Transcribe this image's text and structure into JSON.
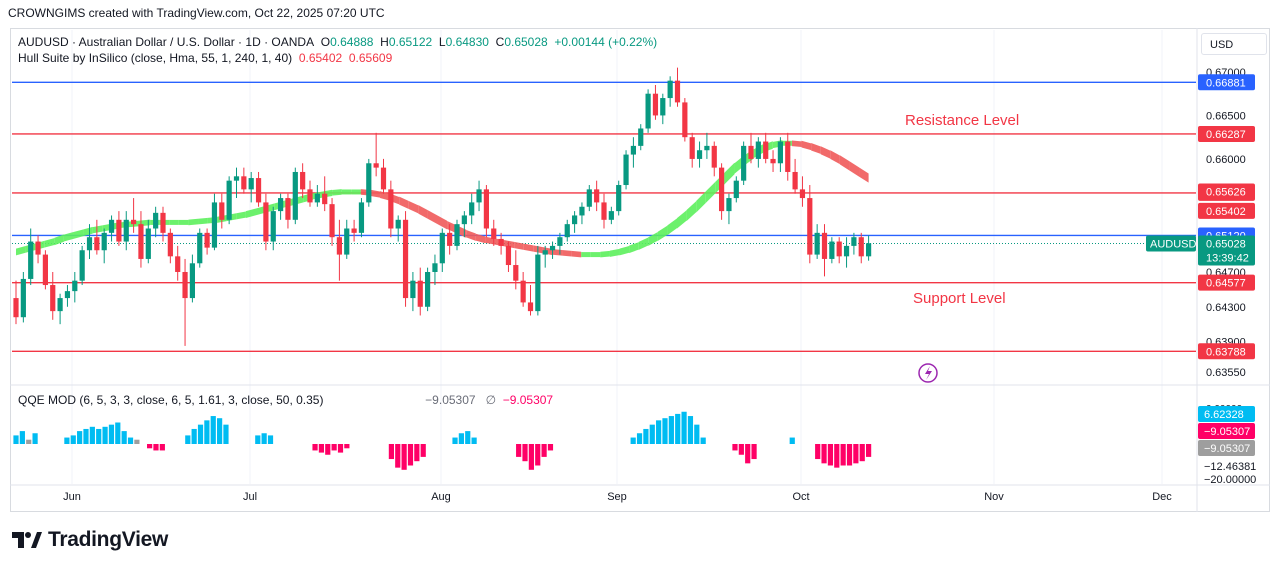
{
  "header": {
    "credit": "CROWNGIMS created with TradingView.com, Oct 22, 2025 07:20 UTC"
  },
  "legend": {
    "symbol": "AUDUSD · Australian Dollar / U.S. Dollar · 1D · OANDA",
    "o_label": "O",
    "o_value": "0.64888",
    "h_label": "H",
    "h_value": "0.65122",
    "l_label": "L",
    "l_value": "0.64830",
    "c_label": "C",
    "c_value": "0.65028",
    "change": "+0.00144 (+0.22%)",
    "hull_name": "Hull Suite by InSilico (close, Hma, 55, 1, 240, 1, 40)",
    "hull_v1": "0.65402",
    "hull_v2": "0.65609",
    "qqe_name": "QQE MOD (6, 5, 3, 3, close, 6, 5, 1.61, 3, close, 50, 0.35)",
    "qqe_v1": "−9.05307",
    "qqe_sym": "∅",
    "qqe_v2": "−9.05307"
  },
  "currency": "USD",
  "footer": {
    "brand": "TradingView"
  },
  "colors": {
    "up": "#089981",
    "down": "#f23645",
    "blue_line": "#2962ff",
    "red_line": "#f23645",
    "hull_up": "#00e600",
    "hull_down": "#ff0000",
    "qqe_up": "#00bcf2",
    "qqe_down": "#ff0066",
    "qqe_neutral": "#9e9e9e"
  },
  "chart_data": {
    "type": "candlestick",
    "symbol": "AUDUSD",
    "timeframe": "1D",
    "ylim": [
      0.6355,
      0.6708
    ],
    "x_labels": [
      "Jun",
      "Jul",
      "Aug",
      "Sep",
      "Oct",
      "Nov",
      "Dec"
    ],
    "y_ticks": [
      "0.67000",
      "0.66500",
      "0.66000",
      "0.64700",
      "0.64300",
      "0.63900",
      "0.63550"
    ],
    "horizontal_lines": [
      {
        "price": 0.66881,
        "color": "#2962ff",
        "label": "0.66881"
      },
      {
        "price": 0.66287,
        "color": "#f23645",
        "label": "0.66287"
      },
      {
        "price": 0.65609,
        "color": "#f23645",
        "label": "0.65609"
      },
      {
        "price": 0.6512,
        "color": "#2962ff",
        "label": "0.65120"
      },
      {
        "price": 0.64577,
        "color": "#f23645",
        "label": "0.64577"
      },
      {
        "price": 0.63788,
        "color": "#f23645",
        "label": "0.63788"
      }
    ],
    "price_badges": [
      {
        "price": 0.65626,
        "text": "0.65626",
        "color": "#f23645"
      },
      {
        "price": 0.65402,
        "text": "0.65402",
        "color": "#f23645"
      }
    ],
    "current_price": {
      "price": 0.65028,
      "symbol": "AUDUSD",
      "text": "0.65028",
      "countdown": "13:39:42",
      "color": "#089981"
    },
    "annotations": [
      {
        "text": "Resistance Level",
        "price": 0.6645,
        "color": "#f23645"
      },
      {
        "text": "Support Level",
        "price": 0.644,
        "color": "#f23645"
      }
    ],
    "candles": [
      [
        0.644,
        0.646,
        0.641,
        0.6418
      ],
      [
        0.6418,
        0.647,
        0.6412,
        0.6462
      ],
      [
        0.6462,
        0.652,
        0.6455,
        0.6505
      ],
      [
        0.6505,
        0.6512,
        0.648,
        0.649
      ],
      [
        0.649,
        0.6495,
        0.645,
        0.6455
      ],
      [
        0.6455,
        0.647,
        0.6415,
        0.6425
      ],
      [
        0.6425,
        0.6445,
        0.641,
        0.644
      ],
      [
        0.644,
        0.6455,
        0.643,
        0.6448
      ],
      [
        0.6448,
        0.647,
        0.6435,
        0.646
      ],
      [
        0.646,
        0.65,
        0.6455,
        0.6495
      ],
      [
        0.6495,
        0.6525,
        0.6485,
        0.651
      ],
      [
        0.651,
        0.653,
        0.649,
        0.6495
      ],
      [
        0.6495,
        0.652,
        0.648,
        0.6515
      ],
      [
        0.6515,
        0.6535,
        0.6505,
        0.653
      ],
      [
        0.653,
        0.654,
        0.65,
        0.6505
      ],
      [
        0.6505,
        0.654,
        0.6495,
        0.653
      ],
      [
        0.653,
        0.6555,
        0.6515,
        0.6525
      ],
      [
        0.6525,
        0.654,
        0.6475,
        0.6485
      ],
      [
        0.6485,
        0.653,
        0.648,
        0.652
      ],
      [
        0.652,
        0.6545,
        0.651,
        0.6538
      ],
      [
        0.6538,
        0.6545,
        0.6505,
        0.6515
      ],
      [
        0.6515,
        0.652,
        0.648,
        0.6488
      ],
      [
        0.6488,
        0.65,
        0.646,
        0.647
      ],
      [
        0.647,
        0.6485,
        0.6385,
        0.644
      ],
      [
        0.644,
        0.649,
        0.6435,
        0.648
      ],
      [
        0.648,
        0.652,
        0.6475,
        0.6515
      ],
      [
        0.6515,
        0.652,
        0.649,
        0.6498
      ],
      [
        0.6498,
        0.656,
        0.6495,
        0.655
      ],
      [
        0.655,
        0.656,
        0.652,
        0.653
      ],
      [
        0.653,
        0.658,
        0.6525,
        0.6575
      ],
      [
        0.6575,
        0.659,
        0.6555,
        0.658
      ],
      [
        0.658,
        0.659,
        0.656,
        0.6565
      ],
      [
        0.6565,
        0.6585,
        0.655,
        0.6578
      ],
      [
        0.6578,
        0.6585,
        0.6545,
        0.655
      ],
      [
        0.655,
        0.656,
        0.6495,
        0.6505
      ],
      [
        0.6505,
        0.6545,
        0.6495,
        0.654
      ],
      [
        0.654,
        0.656,
        0.653,
        0.6555
      ],
      [
        0.6555,
        0.656,
        0.652,
        0.653
      ],
      [
        0.653,
        0.659,
        0.6525,
        0.6585
      ],
      [
        0.6585,
        0.6595,
        0.6555,
        0.6565
      ],
      [
        0.6565,
        0.6575,
        0.6545,
        0.655
      ],
      [
        0.655,
        0.657,
        0.6545,
        0.656
      ],
      [
        0.656,
        0.658,
        0.654,
        0.6548
      ],
      [
        0.6548,
        0.6555,
        0.65,
        0.651
      ],
      [
        0.651,
        0.653,
        0.646,
        0.649
      ],
      [
        0.649,
        0.653,
        0.6485,
        0.652
      ],
      [
        0.652,
        0.653,
        0.6505,
        0.6515
      ],
      [
        0.6515,
        0.6555,
        0.651,
        0.655
      ],
      [
        0.655,
        0.66,
        0.6545,
        0.6595
      ],
      [
        0.6595,
        0.663,
        0.658,
        0.659
      ],
      [
        0.659,
        0.66,
        0.656,
        0.6565
      ],
      [
        0.6565,
        0.6575,
        0.651,
        0.652
      ],
      [
        0.652,
        0.6535,
        0.6505,
        0.653
      ],
      [
        0.653,
        0.654,
        0.643,
        0.644
      ],
      [
        0.644,
        0.647,
        0.6425,
        0.646
      ],
      [
        0.646,
        0.6475,
        0.642,
        0.643
      ],
      [
        0.643,
        0.6475,
        0.6425,
        0.647
      ],
      [
        0.647,
        0.649,
        0.6455,
        0.648
      ],
      [
        0.648,
        0.652,
        0.647,
        0.6515
      ],
      [
        0.6515,
        0.6525,
        0.649,
        0.65
      ],
      [
        0.65,
        0.653,
        0.6495,
        0.6525
      ],
      [
        0.6525,
        0.654,
        0.651,
        0.6535
      ],
      [
        0.6535,
        0.656,
        0.6525,
        0.655
      ],
      [
        0.655,
        0.6575,
        0.654,
        0.6565
      ],
      [
        0.6565,
        0.657,
        0.651,
        0.652
      ],
      [
        0.652,
        0.653,
        0.65,
        0.6508
      ],
      [
        0.6508,
        0.6515,
        0.649,
        0.65
      ],
      [
        0.65,
        0.6505,
        0.647,
        0.6478
      ],
      [
        0.6478,
        0.6495,
        0.645,
        0.646
      ],
      [
        0.646,
        0.647,
        0.643,
        0.6435
      ],
      [
        0.6435,
        0.6455,
        0.642,
        0.6425
      ],
      [
        0.6425,
        0.65,
        0.642,
        0.649
      ],
      [
        0.649,
        0.65,
        0.6475,
        0.6495
      ],
      [
        0.6495,
        0.6505,
        0.6485,
        0.65
      ],
      [
        0.65,
        0.6515,
        0.649,
        0.651
      ],
      [
        0.651,
        0.653,
        0.6505,
        0.6525
      ],
      [
        0.6525,
        0.654,
        0.6515,
        0.6535
      ],
      [
        0.6535,
        0.655,
        0.6525,
        0.6545
      ],
      [
        0.6545,
        0.657,
        0.654,
        0.6565
      ],
      [
        0.6565,
        0.6575,
        0.654,
        0.655
      ],
      [
        0.655,
        0.656,
        0.652,
        0.653
      ],
      [
        0.653,
        0.6545,
        0.6525,
        0.654
      ],
      [
        0.654,
        0.6575,
        0.6535,
        0.657
      ],
      [
        0.657,
        0.661,
        0.6565,
        0.6605
      ],
      [
        0.6605,
        0.6625,
        0.659,
        0.6615
      ],
      [
        0.6615,
        0.664,
        0.661,
        0.6635
      ],
      [
        0.6635,
        0.668,
        0.663,
        0.6675
      ],
      [
        0.6675,
        0.6685,
        0.6645,
        0.665
      ],
      [
        0.665,
        0.6675,
        0.664,
        0.667
      ],
      [
        0.667,
        0.6695,
        0.666,
        0.669
      ],
      [
        0.669,
        0.6705,
        0.666,
        0.6665
      ],
      [
        0.6665,
        0.667,
        0.662,
        0.6625
      ],
      [
        0.6625,
        0.663,
        0.659,
        0.66
      ],
      [
        0.66,
        0.662,
        0.659,
        0.661
      ],
      [
        0.661,
        0.663,
        0.66,
        0.6615
      ],
      [
        0.6615,
        0.662,
        0.658,
        0.659
      ],
      [
        0.659,
        0.6595,
        0.653,
        0.654
      ],
      [
        0.654,
        0.656,
        0.6525,
        0.6555
      ],
      [
        0.6555,
        0.658,
        0.655,
        0.6575
      ],
      [
        0.6575,
        0.662,
        0.657,
        0.6615
      ],
      [
        0.6615,
        0.663,
        0.6595,
        0.66
      ],
      [
        0.66,
        0.6625,
        0.659,
        0.662
      ],
      [
        0.662,
        0.663,
        0.6595,
        0.66
      ],
      [
        0.66,
        0.661,
        0.6585,
        0.6595
      ],
      [
        0.6595,
        0.6625,
        0.6585,
        0.662
      ],
      [
        0.662,
        0.663,
        0.6575,
        0.6585
      ],
      [
        0.6585,
        0.66,
        0.656,
        0.6565
      ],
      [
        0.6565,
        0.658,
        0.6545,
        0.6555
      ],
      [
        0.6555,
        0.657,
        0.648,
        0.649
      ],
      [
        0.649,
        0.6525,
        0.6485,
        0.6515
      ],
      [
        0.6515,
        0.6525,
        0.6465,
        0.6485
      ],
      [
        0.6485,
        0.651,
        0.648,
        0.6505
      ],
      [
        0.6505,
        0.651,
        0.648,
        0.6488
      ],
      [
        0.6488,
        0.651,
        0.6475,
        0.65
      ],
      [
        0.65,
        0.6515,
        0.649,
        0.651
      ],
      [
        0.651,
        0.6515,
        0.648,
        0.6488
      ],
      [
        0.6488,
        0.6512,
        0.6483,
        0.6503
      ]
    ],
    "hull": [
      0.6493,
      0.6496,
      0.6499,
      0.6502,
      0.6505,
      0.6509,
      0.6512,
      0.6515,
      0.6518,
      0.652,
      0.6522,
      0.6524,
      0.6525,
      0.6526,
      0.6527,
      0.6527,
      0.6527,
      0.6527,
      0.6527,
      0.6528,
      0.6529,
      0.653,
      0.6532,
      0.6534,
      0.6536,
      0.6539,
      0.6542,
      0.6545,
      0.6548,
      0.6551,
      0.6554,
      0.6557,
      0.6559,
      0.6561,
      0.6562,
      0.6562,
      0.6562,
      0.6561,
      0.6559,
      0.6556,
      0.6552,
      0.6547,
      0.6542,
      0.6536,
      0.653,
      0.6524,
      0.6519,
      0.6514,
      0.651,
      0.6507,
      0.6505,
      0.6503,
      0.6501,
      0.6499,
      0.6497,
      0.6495,
      0.6493,
      0.6492,
      0.6491,
      0.649,
      0.649,
      0.649,
      0.6491,
      0.6493,
      0.6496,
      0.65,
      0.6505,
      0.6511,
      0.6518,
      0.6526,
      0.6535,
      0.6545,
      0.6556,
      0.6567,
      0.6578,
      0.6589,
      0.6598,
      0.6606,
      0.6612,
      0.6616,
      0.6618,
      0.6618,
      0.6617,
      0.6614,
      0.661,
      0.6605,
      0.6599,
      0.6592,
      0.6585,
      0.6578
    ]
  },
  "qqe": {
    "badges": [
      {
        "text": "6.62328",
        "color": "#00bcf2"
      },
      {
        "text": "−9.05307",
        "color": "#ff0066"
      },
      {
        "text": "−9.05307",
        "color": "#9e9e9e"
      }
    ],
    "axis_ticks": [
      "−12.46381",
      "−20.00000"
    ],
    "hist_top_label": "0.00000",
    "bars": [
      4,
      6,
      2,
      5,
      0,
      0,
      0,
      0,
      3,
      4,
      6,
      7,
      8,
      7,
      8,
      9,
      10,
      6,
      3,
      2,
      0,
      -2,
      -3,
      -3,
      0,
      0,
      0,
      4,
      7,
      9,
      11,
      13,
      12,
      9,
      0,
      0,
      0,
      0,
      4,
      5,
      4,
      0,
      0,
      0,
      0,
      0,
      0,
      -3,
      -4,
      -5,
      -3,
      -4,
      -2,
      0,
      0,
      0,
      0,
      0,
      0,
      -7,
      -11,
      -12,
      -10,
      -8,
      -6,
      0,
      0,
      0,
      0,
      3,
      5,
      6,
      3,
      0,
      0,
      0,
      0,
      0,
      0,
      -6,
      -8,
      -12,
      -10,
      -6,
      -3,
      0,
      0,
      0,
      0,
      0,
      0,
      0,
      0,
      0,
      0,
      0,
      0,
      3,
      5,
      7,
      9,
      11,
      12,
      13,
      14,
      15,
      13,
      9,
      3,
      0,
      0,
      0,
      0,
      -3,
      -5,
      -9,
      -7,
      0,
      0,
      0,
      0,
      0,
      3,
      0,
      0,
      0,
      -7,
      -9,
      -10,
      -11,
      -10,
      -10,
      -9,
      -8,
      -6
    ]
  }
}
